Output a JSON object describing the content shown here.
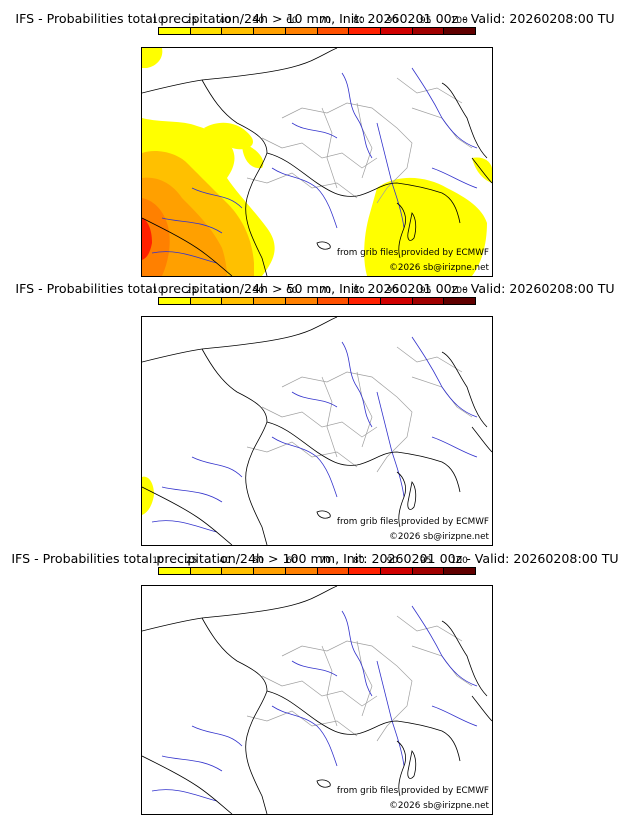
{
  "panels": [
    {
      "title": "IFS - Probabilities total precipitation/24h > 10 mm, Init: 20260201 00z - Valid: 20260208:00 TU",
      "threshold": "10 mm"
    },
    {
      "title": "IFS - Probabilities total precipitation/24h > 50 mm, Init: 20260201 00z - Valid: 20260208:00 TU",
      "threshold": "50 mm"
    },
    {
      "title": "IFS - Probabilities total precipitation/24h > 100 mm, Init: 20260201 00z - Valid: 20260208:00 TU",
      "threshold": "100 mm"
    }
  ],
  "colorbar": {
    "ticks": [
      "10",
      "25",
      "40",
      "50",
      "60",
      "70",
      "80",
      "90",
      "95",
      "100"
    ],
    "colors": [
      "#ffff00",
      "#ffe000",
      "#ffc000",
      "#ffa000",
      "#ff8000",
      "#ff5000",
      "#ff2000",
      "#d00000",
      "#a00000",
      "#600000"
    ]
  },
  "credits": {
    "source": "from grib files provided by ECMWF",
    "copyright": "©2026 sb@irizpne.net"
  },
  "legend_colors": {
    "coast": "#000000",
    "rivers": "#3333cc",
    "borders": "#a0a0a0"
  }
}
